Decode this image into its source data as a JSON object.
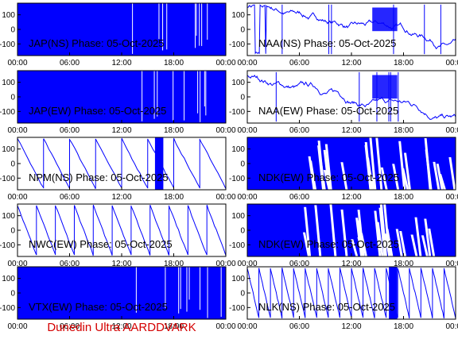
{
  "footer": "Dunedin Ultra AARDDVARK",
  "colors": {
    "trace": "#0000ff",
    "axis": "#000000",
    "label": "#000000",
    "footer": "#d40000"
  },
  "chart_data": [
    {
      "type": "line",
      "title": "JAP(NS) Phase: 05-Oct-2025",
      "x_ticks": [
        "00:00",
        "06:00",
        "12:00",
        "18:00",
        "00:00"
      ],
      "y_ticks": [
        "100",
        "0",
        "-100"
      ],
      "ylim": [
        -180,
        180
      ],
      "pattern": "solid",
      "grid": false
    },
    {
      "type": "line",
      "title": "NAA(NS) Phase: 05-Oct-2025",
      "x_ticks": [
        "00:00",
        "06:00",
        "12:00",
        "18:00",
        "00:00"
      ],
      "y_ticks": [
        "100",
        "0",
        "-100"
      ],
      "ylim": [
        -180,
        180
      ],
      "pattern": "drift",
      "grid": false
    },
    {
      "type": "line",
      "title": "JAP(EW) Phase: 05-Oct-2025",
      "x_ticks": [
        "00:00",
        "06:00",
        "12:00",
        "18:00",
        "00:00"
      ],
      "y_ticks": [
        "100",
        "0",
        "-100"
      ],
      "ylim": [
        -180,
        180
      ],
      "pattern": "solid",
      "grid": false
    },
    {
      "type": "line",
      "title": "NAA(EW) Phase: 05-Oct-2025",
      "x_ticks": [
        "00:00",
        "06:00",
        "12:00",
        "18:00",
        "00:00"
      ],
      "y_ticks": [
        "100",
        "0",
        "-100"
      ],
      "ylim": [
        -180,
        180
      ],
      "pattern": "drift",
      "grid": false
    },
    {
      "type": "line",
      "title": "NPM(NS) Phase: 05-Oct-2025",
      "x_ticks": [
        "00:00",
        "06:00",
        "12:00",
        "18:00",
        "00:00"
      ],
      "y_ticks": [
        "100",
        "0",
        "-100"
      ],
      "ylim": [
        -180,
        180
      ],
      "pattern": "sawtooth",
      "grid": false
    },
    {
      "type": "line",
      "title": "NDK(EW) Phase: 05-Oct-2025",
      "x_ticks": [
        "00:00",
        "06:00",
        "12:00",
        "18:00",
        "00:00"
      ],
      "y_ticks": [
        "100",
        "0",
        "-100"
      ],
      "ylim": [
        -180,
        180
      ],
      "pattern": "dense",
      "grid": false
    },
    {
      "type": "line",
      "title": "NWC(EW) Phase: 05-Oct-2025",
      "x_ticks": [
        "00:00",
        "06:00",
        "12:00",
        "18:00",
        "00:00"
      ],
      "y_ticks": [
        "100",
        "0",
        "-100"
      ],
      "ylim": [
        -180,
        180
      ],
      "pattern": "sawtooth",
      "grid": false
    },
    {
      "type": "line",
      "title": "NDK(EW) Phase: 05-Oct-2025",
      "x_ticks": [
        "00:00",
        "06:00",
        "12:00",
        "18:00",
        "00:00"
      ],
      "y_ticks": [
        "100",
        "0",
        "-100"
      ],
      "ylim": [
        -180,
        180
      ],
      "pattern": "dense",
      "grid": false
    },
    {
      "type": "line",
      "title": "VTX(EW) Phase: 05-Oct-2025",
      "x_ticks": [
        "00:00",
        "06:00",
        "12:00",
        "18:00",
        "00:00"
      ],
      "y_ticks": [
        "100",
        "0",
        "-100"
      ],
      "ylim": [
        -180,
        180
      ],
      "pattern": "solid",
      "grid": false
    },
    {
      "type": "line",
      "title": "NLK(NS) Phase: 05-Oct-2025",
      "x_ticks": [
        "00:00",
        "06:00",
        "12:00",
        "18:00",
        "00:00"
      ],
      "y_ticks": [
        "100",
        "0",
        "-100"
      ],
      "ylim": [
        -180,
        180
      ],
      "pattern": "sawtooth",
      "grid": false
    }
  ]
}
